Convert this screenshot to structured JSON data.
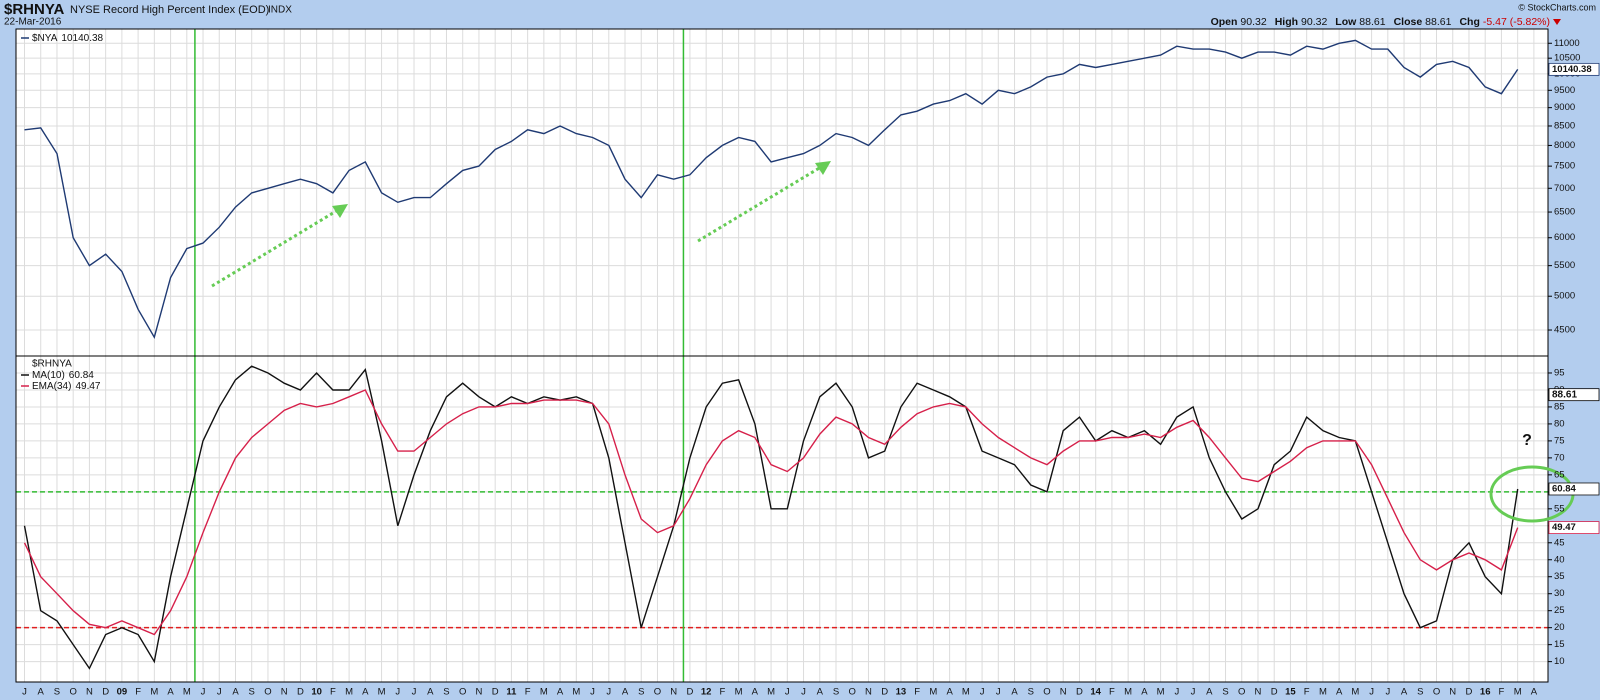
{
  "header": {
    "symbol": "$RHNYA",
    "name": "NYSE Record High Percent Index (EOD)",
    "exchange": "INDX",
    "date": "22-Mar-2016",
    "copyright": "© StockCharts.com",
    "quote": [
      {
        "label": "Open",
        "value": 90.32
      },
      {
        "label": "High",
        "value": 90.32
      },
      {
        "label": "Low",
        "value": 88.61
      },
      {
        "label": "Close",
        "value": 88.61
      },
      {
        "label": "Chg",
        "value": "-5.47 (-5.82%)"
      }
    ]
  },
  "chart_data": [
    {
      "type": "line",
      "log_scale": true,
      "grid": true,
      "ylim": [
        4150,
        11500
      ],
      "yticks": [
        4500,
        5000,
        5500,
        6000,
        6500,
        7000,
        7500,
        8000,
        8500,
        9000,
        9500,
        10000,
        10500,
        11000
      ],
      "vlines": [
        10.5,
        40.6
      ],
      "vline_color": "#33bb33",
      "series": [
        {
          "name": "$NYA",
          "color": "#1f3a73",
          "last_label": "10140.38",
          "values": [
            8400,
            8450,
            7800,
            6000,
            5500,
            5700,
            5400,
            4800,
            4400,
            5300,
            5800,
            5900,
            6200,
            6600,
            6900,
            7000,
            7100,
            7200,
            7100,
            6900,
            7400,
            7600,
            6900,
            6700,
            6800,
            6800,
            7100,
            7400,
            7500,
            7900,
            8100,
            8400,
            8300,
            8500,
            8300,
            8200,
            8000,
            7200,
            6800,
            7300,
            7200,
            7300,
            7700,
            8000,
            8200,
            8100,
            7600,
            7700,
            7800,
            8000,
            8300,
            8200,
            8000,
            8400,
            8800,
            8900,
            9100,
            9200,
            9400,
            9100,
            9500,
            9400,
            9600,
            9900,
            10000,
            10300,
            10200,
            10300,
            10400,
            10500,
            10600,
            10900,
            10800,
            10800,
            10700,
            10500,
            10700,
            10700,
            10600,
            10900,
            10800,
            11000,
            11100,
            10800,
            10800,
            10200,
            9900,
            10300,
            10400,
            10200,
            9600,
            9400,
            10140.38,
            null
          ]
        }
      ]
    },
    {
      "type": "line",
      "title": "$RHNYA",
      "grid": true,
      "ylim": [
        4,
        100
      ],
      "yticks": [
        10,
        15,
        20,
        25,
        30,
        35,
        40,
        45,
        50,
        55,
        60,
        65,
        70,
        75,
        80,
        85,
        90,
        95
      ],
      "vlines": [
        10.5,
        40.6
      ],
      "vline_color": "#33bb33",
      "hlines": [
        {
          "value": 60,
          "color": "#33bb33"
        },
        {
          "value": 20,
          "color": "#e02020"
        }
      ],
      "close_tag": 88.61,
      "annotation": "?",
      "categories": [
        "J",
        "A",
        "S",
        "O",
        "N",
        "D",
        "09",
        "F",
        "M",
        "A",
        "M",
        "J",
        "J",
        "A",
        "S",
        "O",
        "N",
        "D",
        "10",
        "F",
        "M",
        "A",
        "M",
        "J",
        "J",
        "A",
        "S",
        "O",
        "N",
        "D",
        "11",
        "F",
        "M",
        "A",
        "M",
        "J",
        "J",
        "A",
        "S",
        "O",
        "N",
        "D",
        "12",
        "F",
        "M",
        "A",
        "M",
        "J",
        "J",
        "A",
        "S",
        "O",
        "N",
        "D",
        "13",
        "F",
        "M",
        "A",
        "M",
        "J",
        "J",
        "A",
        "S",
        "O",
        "N",
        "D",
        "14",
        "F",
        "M",
        "A",
        "M",
        "J",
        "J",
        "A",
        "S",
        "O",
        "N",
        "D",
        "15",
        "F",
        "M",
        "A",
        "M",
        "J",
        "J",
        "A",
        "S",
        "O",
        "N",
        "D",
        "16",
        "F",
        "M",
        "A"
      ],
      "series": [
        {
          "name": "MA(10)",
          "color": "#111111",
          "last_label": "60.84",
          "values": [
            50,
            25,
            22,
            15,
            8,
            18,
            20,
            18,
            10,
            35,
            55,
            75,
            85,
            93,
            97,
            95,
            92,
            90,
            95,
            90,
            90,
            96,
            75,
            50,
            65,
            78,
            88,
            92,
            88,
            85,
            88,
            86,
            88,
            87,
            88,
            86,
            70,
            45,
            20,
            35,
            50,
            70,
            85,
            92,
            93,
            80,
            55,
            55,
            75,
            88,
            92,
            85,
            70,
            72,
            85,
            92,
            90,
            88,
            85,
            72,
            70,
            68,
            62,
            60,
            78,
            82,
            75,
            78,
            76,
            78,
            74,
            82,
            85,
            70,
            60,
            52,
            55,
            68,
            72,
            82,
            78,
            76,
            75,
            60,
            45,
            30,
            20,
            22,
            40,
            45,
            35,
            30,
            60.84,
            null
          ]
        },
        {
          "name": "EMA(34)",
          "color": "#d6204a",
          "last_label": "49.47",
          "values": [
            45,
            35,
            30,
            25,
            21,
            20,
            22,
            20,
            18,
            25,
            35,
            48,
            60,
            70,
            76,
            80,
            84,
            86,
            85,
            86,
            88,
            90,
            80,
            72,
            72,
            76,
            80,
            83,
            85,
            85,
            86,
            86,
            87,
            87,
            87,
            86,
            80,
            65,
            52,
            48,
            50,
            58,
            68,
            75,
            78,
            76,
            68,
            66,
            70,
            77,
            82,
            80,
            76,
            74,
            79,
            83,
            85,
            86,
            85,
            80,
            76,
            73,
            70,
            68,
            72,
            75,
            75,
            76,
            76,
            77,
            76,
            79,
            81,
            76,
            70,
            64,
            63,
            66,
            69,
            73,
            75,
            75,
            75,
            68,
            58,
            48,
            40,
            37,
            40,
            42,
            40,
            37,
            49.47,
            null
          ]
        }
      ]
    }
  ]
}
